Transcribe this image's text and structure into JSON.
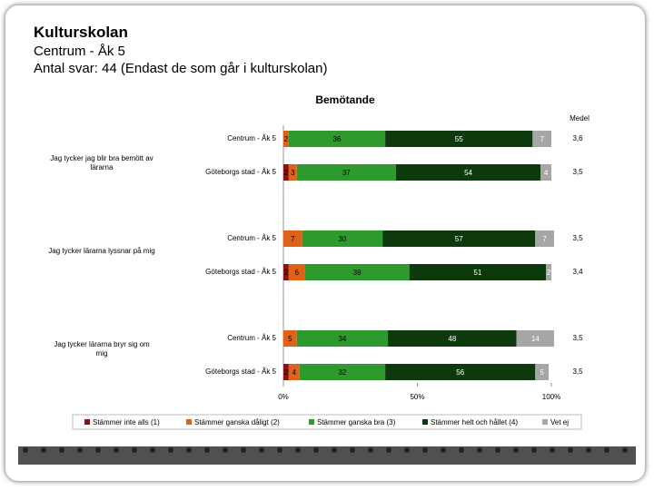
{
  "header": {
    "title": "Kulturskolan",
    "subtitle": "Centrum - Åk 5",
    "note": "Antal svar: 44 (Endast de som går i kulturskolan)"
  },
  "chart_data": {
    "type": "bar",
    "orientation": "horizontal",
    "stacked": true,
    "title": "Bemötande",
    "mean_title": "Medel",
    "categories": [
      "Centrum - Åk 5",
      "Göteborgs stad - Åk 5",
      "Centrum - Åk 5",
      "Göteborgs stad - Åk 5",
      "Centrum - Åk 5",
      "Göteborgs stad - Åk 5"
    ],
    "groups": [
      "Jag tycker jag blir bra bemött av lärarna",
      "Jag tycker lärarna lyssnar på mig",
      "Jag tycker lärarna bryr sig om mig"
    ],
    "series": [
      {
        "name": "Stämmer inte alls (1)",
        "color": "#8b1414",
        "values": [
          null,
          2,
          null,
          2,
          null,
          2
        ]
      },
      {
        "name": "Stämmer ganska dåligt (2)",
        "color": "#e0621a",
        "values": [
          2,
          3,
          7,
          6,
          5,
          4
        ]
      },
      {
        "name": "Stämmer ganska bra (3)",
        "color": "#2e9a2e",
        "values": [
          36,
          37,
          30,
          39,
          34,
          32
        ]
      },
      {
        "name": "Stämmer helt och hållet (4)",
        "color": "#0c3a0c",
        "values": [
          55,
          54,
          57,
          51,
          48,
          56
        ]
      },
      {
        "name": "Vet ej",
        "color": "#a6a6a6",
        "values": [
          7,
          4,
          7,
          2,
          14,
          5
        ]
      }
    ],
    "means": [
      "3,6",
      "3,5",
      "3,5",
      "3,4",
      "3,5",
      "3,5"
    ],
    "xlim": [
      0,
      100
    ],
    "xticks": [
      {
        "value": 0,
        "label": "0%"
      },
      {
        "value": 50,
        "label": "50%"
      },
      {
        "value": 100,
        "label": "100%"
      }
    ]
  }
}
